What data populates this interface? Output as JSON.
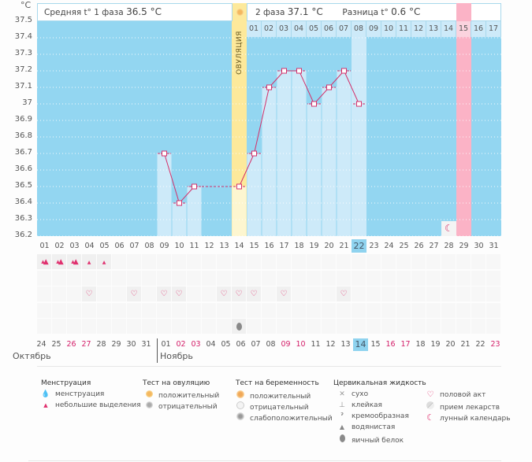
{
  "header": {
    "phase1_label": "Средняя t° 1 фаза",
    "phase1_value": "36.5 °C",
    "phase2_label": "2 фаза",
    "phase2_value": "37.1 °C",
    "diff_label": "Разница t°",
    "diff_value": "0.6 °C",
    "ovulation_label": "ОВУЛЯЦИЯ"
  },
  "chart_data": {
    "type": "bar",
    "title": "",
    "ylabel": "°C",
    "xlabel": "",
    "ylim": [
      36.2,
      37.5
    ],
    "yticks": [
      "37.5",
      "37.4",
      "37.3",
      "37.2",
      "37.1",
      "37",
      "36.9",
      "36.8",
      "36.7",
      "36.6",
      "36.5",
      "36.4",
      "36.3",
      "36.2"
    ],
    "categories": [
      "01",
      "02",
      "03",
      "04",
      "05",
      "06",
      "07",
      "08",
      "09",
      "10",
      "11",
      "12",
      "13",
      "14",
      "15",
      "16",
      "17",
      "18",
      "19",
      "20",
      "21",
      "22",
      "23",
      "24",
      "25",
      "26",
      "27",
      "28",
      "29",
      "30",
      "31"
    ],
    "values": [
      null,
      null,
      null,
      null,
      null,
      null,
      null,
      null,
      36.7,
      36.4,
      36.5,
      null,
      null,
      36.5,
      36.7,
      37.1,
      37.2,
      37.2,
      37.0,
      37.1,
      37.2,
      37.0,
      null,
      null,
      null,
      null,
      null,
      null,
      null,
      null,
      null
    ],
    "ovulation_day": "14",
    "today_day": "22",
    "expected_period_day": "29",
    "moon_day": "28",
    "dashed_segment": [
      "11",
      "14"
    ],
    "phase2_day_numbers": [
      "01",
      "02",
      "03",
      "04",
      "05",
      "06",
      "07",
      "08",
      "09",
      "10",
      "11",
      "12",
      "13",
      "14",
      "15",
      "16",
      "17"
    ],
    "phase2_highlight": "15"
  },
  "symbols": {
    "menstruation_heavy": [
      "01",
      "02",
      "03"
    ],
    "menstruation_light": [
      "04",
      "05"
    ],
    "intercourse": [
      "04",
      "07",
      "09",
      "10",
      "13",
      "14",
      "15",
      "17",
      "21"
    ],
    "egg_white": [
      "14"
    ]
  },
  "dates": {
    "labels": [
      "24",
      "25",
      "26",
      "27",
      "28",
      "29",
      "30",
      "31",
      "01",
      "02",
      "03",
      "04",
      "05",
      "06",
      "07",
      "08",
      "09",
      "10",
      "11",
      "12",
      "13",
      "14",
      "15",
      "16",
      "17",
      "18",
      "19",
      "20",
      "21",
      "22",
      "23"
    ],
    "red": [
      "26",
      "27",
      "02",
      "03",
      "09",
      "10",
      "16",
      "17",
      "23"
    ],
    "today_index": 21,
    "month_start_index": 8,
    "month1": "Октябрь",
    "month2": "Ноябрь"
  },
  "legend": {
    "menstruation": {
      "title": "Менструация",
      "items": [
        "менструация",
        "небольшие выделения"
      ]
    },
    "ovulation_test": {
      "title": "Тест на овуляцию",
      "items": [
        "положительный",
        "отрицательный"
      ]
    },
    "pregnancy_test": {
      "title": "Тест на беременность",
      "items": [
        "положительный",
        "отрицательный",
        "слабоположительный"
      ]
    },
    "cervical": {
      "title": "Цервикальная жидкость",
      "items": [
        "сухо",
        "клейкая",
        "кремообразная",
        "водянистая",
        "яичный белок"
      ]
    },
    "other": {
      "items": [
        "половой акт",
        "прием лекарств",
        "лунный календарь"
      ]
    }
  },
  "colors": {
    "plot_bg": "#93d6f1",
    "bar_fill": "#cdeaf9",
    "ovulation": "#fde99b",
    "ovulation_bar": "#fdf6d0",
    "period": "#fbb3c6",
    "line": "#d4306a"
  }
}
